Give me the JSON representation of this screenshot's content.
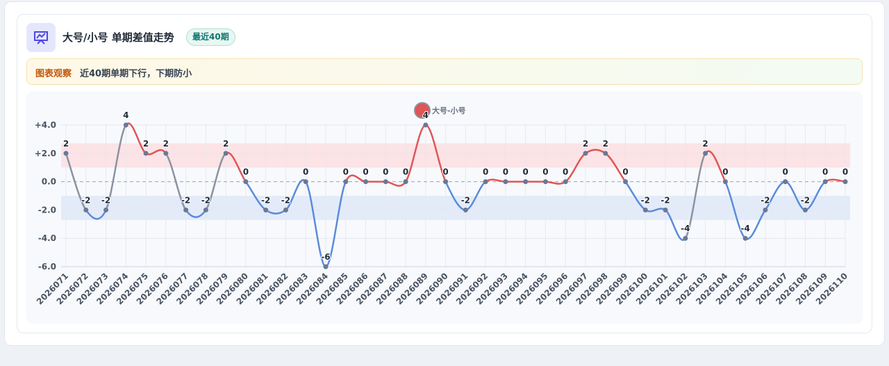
{
  "header": {
    "title": "大号/小号 单期差值走势",
    "badge": "最近40期"
  },
  "insight": {
    "label": "图表观察",
    "text": "近40期单期下行，下期防小"
  },
  "chart_data": {
    "type": "line",
    "categories": [
      "2026071",
      "2026072",
      "2026073",
      "2026074",
      "2026075",
      "2026076",
      "2026077",
      "2026078",
      "2026079",
      "2026080",
      "2026081",
      "2026082",
      "2026083",
      "2026084",
      "2026085",
      "2026086",
      "2026087",
      "2026088",
      "2026089",
      "2026090",
      "2026091",
      "2026092",
      "2026093",
      "2026094",
      "2026095",
      "2026096",
      "2026097",
      "2026098",
      "2026099",
      "2026100",
      "2026101",
      "2026102",
      "2026103",
      "2026104",
      "2026105",
      "2026106",
      "2026107",
      "2026108",
      "2026109",
      "2026110"
    ],
    "series": [
      {
        "name": "大号-小号",
        "color": "#e05555",
        "negative_color": "#5b8bd9",
        "cross_color": "#8c93a0",
        "point_color": "#6b7896",
        "values": [
          2,
          -2,
          -2,
          4,
          2,
          2,
          -2,
          -2,
          2,
          0,
          -2,
          -2,
          0,
          -6,
          0,
          0,
          0,
          0,
          4,
          0,
          -2,
          0,
          0,
          0,
          0,
          0,
          2,
          2,
          0,
          -2,
          -2,
          -4,
          2,
          0,
          -4,
          -2,
          0,
          -2,
          0,
          0
        ]
      }
    ],
    "ylim": [
      -6,
      4
    ],
    "yticks": [
      {
        "value": 4,
        "label": "+4.0"
      },
      {
        "value": 2,
        "label": "+2.0"
      },
      {
        "value": 0,
        "label": "0.0"
      },
      {
        "value": -2,
        "label": "-2.0"
      },
      {
        "value": -4,
        "label": "-4.0"
      },
      {
        "value": -6,
        "label": "-6.0"
      }
    ],
    "bands": [
      {
        "from": 1,
        "to": 2.7,
        "color": "#fbe3e6"
      },
      {
        "from": -1,
        "to": -2.7,
        "color": "#e3ebf9"
      }
    ],
    "grid": true
  }
}
